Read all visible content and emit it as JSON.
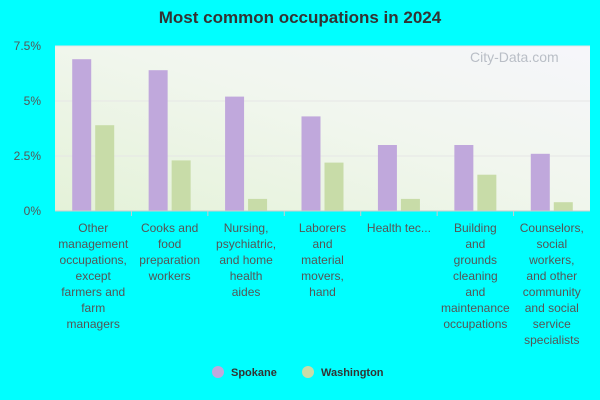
{
  "title": "Most common occupations in 2024",
  "watermark": "City-Data.com",
  "chart_data": {
    "type": "bar",
    "title": "Most common occupations in 2024",
    "categories": [
      [
        "Other",
        "management",
        "occupations,",
        "except",
        "farmers and",
        "farm",
        "managers"
      ],
      [
        "Cooks and",
        "food",
        "preparation",
        "workers"
      ],
      [
        "Nursing,",
        "psychiatric,",
        "and home",
        "health",
        "aides"
      ],
      [
        "Laborers",
        "and",
        "material",
        "movers,",
        "hand"
      ],
      [
        "Health tec..."
      ],
      [
        "Building",
        "and",
        "grounds",
        "cleaning",
        "and",
        "maintenance",
        "occupations"
      ],
      [
        "Counselors,",
        "social",
        "workers,",
        "and other",
        "community",
        "and social",
        "service",
        "specialists"
      ]
    ],
    "series": [
      {
        "name": "Spokane",
        "color": "#c0a8dc",
        "values": [
          6.9,
          6.4,
          5.2,
          4.3,
          3.0,
          3.0,
          2.6
        ]
      },
      {
        "name": "Washington",
        "color": "#c8dca8",
        "values": [
          3.9,
          2.3,
          0.55,
          2.2,
          0.55,
          1.65,
          0.4
        ]
      }
    ],
    "yticks": [
      "0%",
      "2.5%",
      "5%",
      "7.5%"
    ],
    "ytick_values": [
      0,
      2.5,
      5,
      7.5
    ],
    "ylim": [
      0,
      7.5
    ],
    "legend_position": "bottom-center",
    "grid": true
  }
}
